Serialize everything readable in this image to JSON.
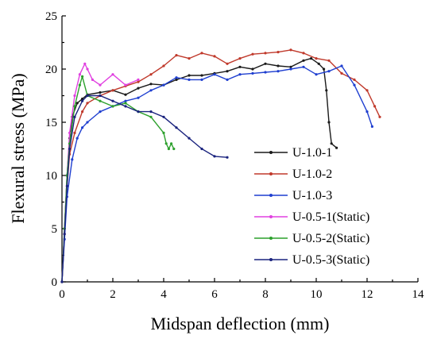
{
  "chart_data": {
    "type": "line",
    "xlabel": "Midspan deflection (mm)",
    "ylabel": "Flexural stress (MPa)",
    "xlim": [
      0,
      14
    ],
    "ylim": [
      0,
      25
    ],
    "xticks": [
      0,
      2,
      4,
      6,
      8,
      10,
      12,
      14
    ],
    "yticks": [
      0,
      5,
      10,
      15,
      20,
      25
    ],
    "grid": false,
    "legend_position": "bottom-right",
    "series": [
      {
        "name": "U-1.0-1",
        "color": "#1a1a1a",
        "x": [
          0,
          0.1,
          0.2,
          0.3,
          0.4,
          0.6,
          0.8,
          1.0,
          1.5,
          2.0,
          2.5,
          3.0,
          3.5,
          4.0,
          4.5,
          5.0,
          5.5,
          6.0,
          6.5,
          7.0,
          7.5,
          8.0,
          8.5,
          9.0,
          9.5,
          9.8,
          10.1,
          10.3,
          10.4,
          10.5,
          10.6,
          10.8
        ],
        "y": [
          0,
          5,
          10,
          13.5,
          15.5,
          16.8,
          17.2,
          17.6,
          17.8,
          18.0,
          17.6,
          18.2,
          18.6,
          18.5,
          19.0,
          19.4,
          19.4,
          19.6,
          19.8,
          20.2,
          20.0,
          20.5,
          20.3,
          20.2,
          20.8,
          21.0,
          20.5,
          20.0,
          18.0,
          15.0,
          13.0,
          12.6
        ]
      },
      {
        "name": "U-1.0-2",
        "color": "#c0392b",
        "x": [
          0,
          0.1,
          0.2,
          0.3,
          0.5,
          0.8,
          1.0,
          1.5,
          2.0,
          2.5,
          3.0,
          3.5,
          4.0,
          4.5,
          5.0,
          5.5,
          6.0,
          6.5,
          7.0,
          7.5,
          8.0,
          8.5,
          9.0,
          9.5,
          10.0,
          10.5,
          11.0,
          11.5,
          12.0,
          12.3,
          12.5
        ],
        "y": [
          0,
          4.5,
          9,
          12.0,
          14.0,
          16.0,
          16.8,
          17.5,
          18.0,
          18.4,
          18.8,
          19.5,
          20.3,
          21.3,
          21.0,
          21.5,
          21.2,
          20.5,
          21.0,
          21.4,
          21.5,
          21.6,
          21.8,
          21.5,
          21.0,
          20.8,
          19.6,
          19.0,
          18.0,
          16.5,
          15.5
        ]
      },
      {
        "name": "U-1.0-3",
        "color": "#1f3fd0",
        "x": [
          0,
          0.1,
          0.2,
          0.4,
          0.6,
          0.8,
          1.0,
          1.5,
          2.0,
          2.5,
          3.0,
          3.5,
          4.0,
          4.5,
          5.0,
          5.5,
          6.0,
          6.5,
          7.0,
          7.5,
          8.0,
          8.5,
          9.0,
          9.5,
          10.0,
          10.5,
          11.0,
          11.5,
          12.0,
          12.2
        ],
        "y": [
          0,
          4,
          8,
          11.5,
          13.5,
          14.5,
          15.0,
          16.0,
          16.5,
          17.0,
          17.3,
          18.0,
          18.5,
          19.2,
          19.0,
          19.0,
          19.5,
          19.0,
          19.5,
          19.6,
          19.7,
          19.8,
          20.0,
          20.2,
          19.5,
          19.8,
          20.3,
          18.5,
          16.0,
          14.6
        ]
      },
      {
        "name": "U-0.5-1(Static)",
        "color": "#e040e0",
        "x": [
          0,
          0.1,
          0.2,
          0.3,
          0.5,
          0.7,
          0.9,
          1.0,
          1.2,
          1.5,
          2.0,
          2.5,
          3.0
        ],
        "y": [
          0,
          5,
          10,
          14,
          17.5,
          19.5,
          20.5,
          20.0,
          19.0,
          18.5,
          19.5,
          18.5,
          19.0
        ]
      },
      {
        "name": "U-0.5-2(Static)",
        "color": "#2ca02c",
        "x": [
          0,
          0.1,
          0.2,
          0.3,
          0.5,
          0.7,
          0.8,
          1.0,
          1.5,
          2.0,
          2.5,
          3.0,
          3.5,
          4.0,
          4.1,
          4.2,
          4.3,
          4.4
        ],
        "y": [
          0,
          5,
          10,
          13,
          16.5,
          18.5,
          19.3,
          17.5,
          17.0,
          16.5,
          16.8,
          16.0,
          15.5,
          14.0,
          13.0,
          12.5,
          13.0,
          12.5
        ]
      },
      {
        "name": "U-0.5-3(Static)",
        "color": "#1a237e",
        "x": [
          0,
          0.1,
          0.2,
          0.3,
          0.5,
          0.8,
          1.0,
          1.5,
          2.0,
          2.5,
          3.0,
          3.5,
          4.0,
          4.5,
          5.0,
          5.5,
          6.0,
          6.5
        ],
        "y": [
          0,
          4.5,
          9,
          12.5,
          15.5,
          17.0,
          17.5,
          17.5,
          17.0,
          16.5,
          16.0,
          16.0,
          15.5,
          14.5,
          13.5,
          12.5,
          11.8,
          11.7
        ]
      }
    ]
  }
}
